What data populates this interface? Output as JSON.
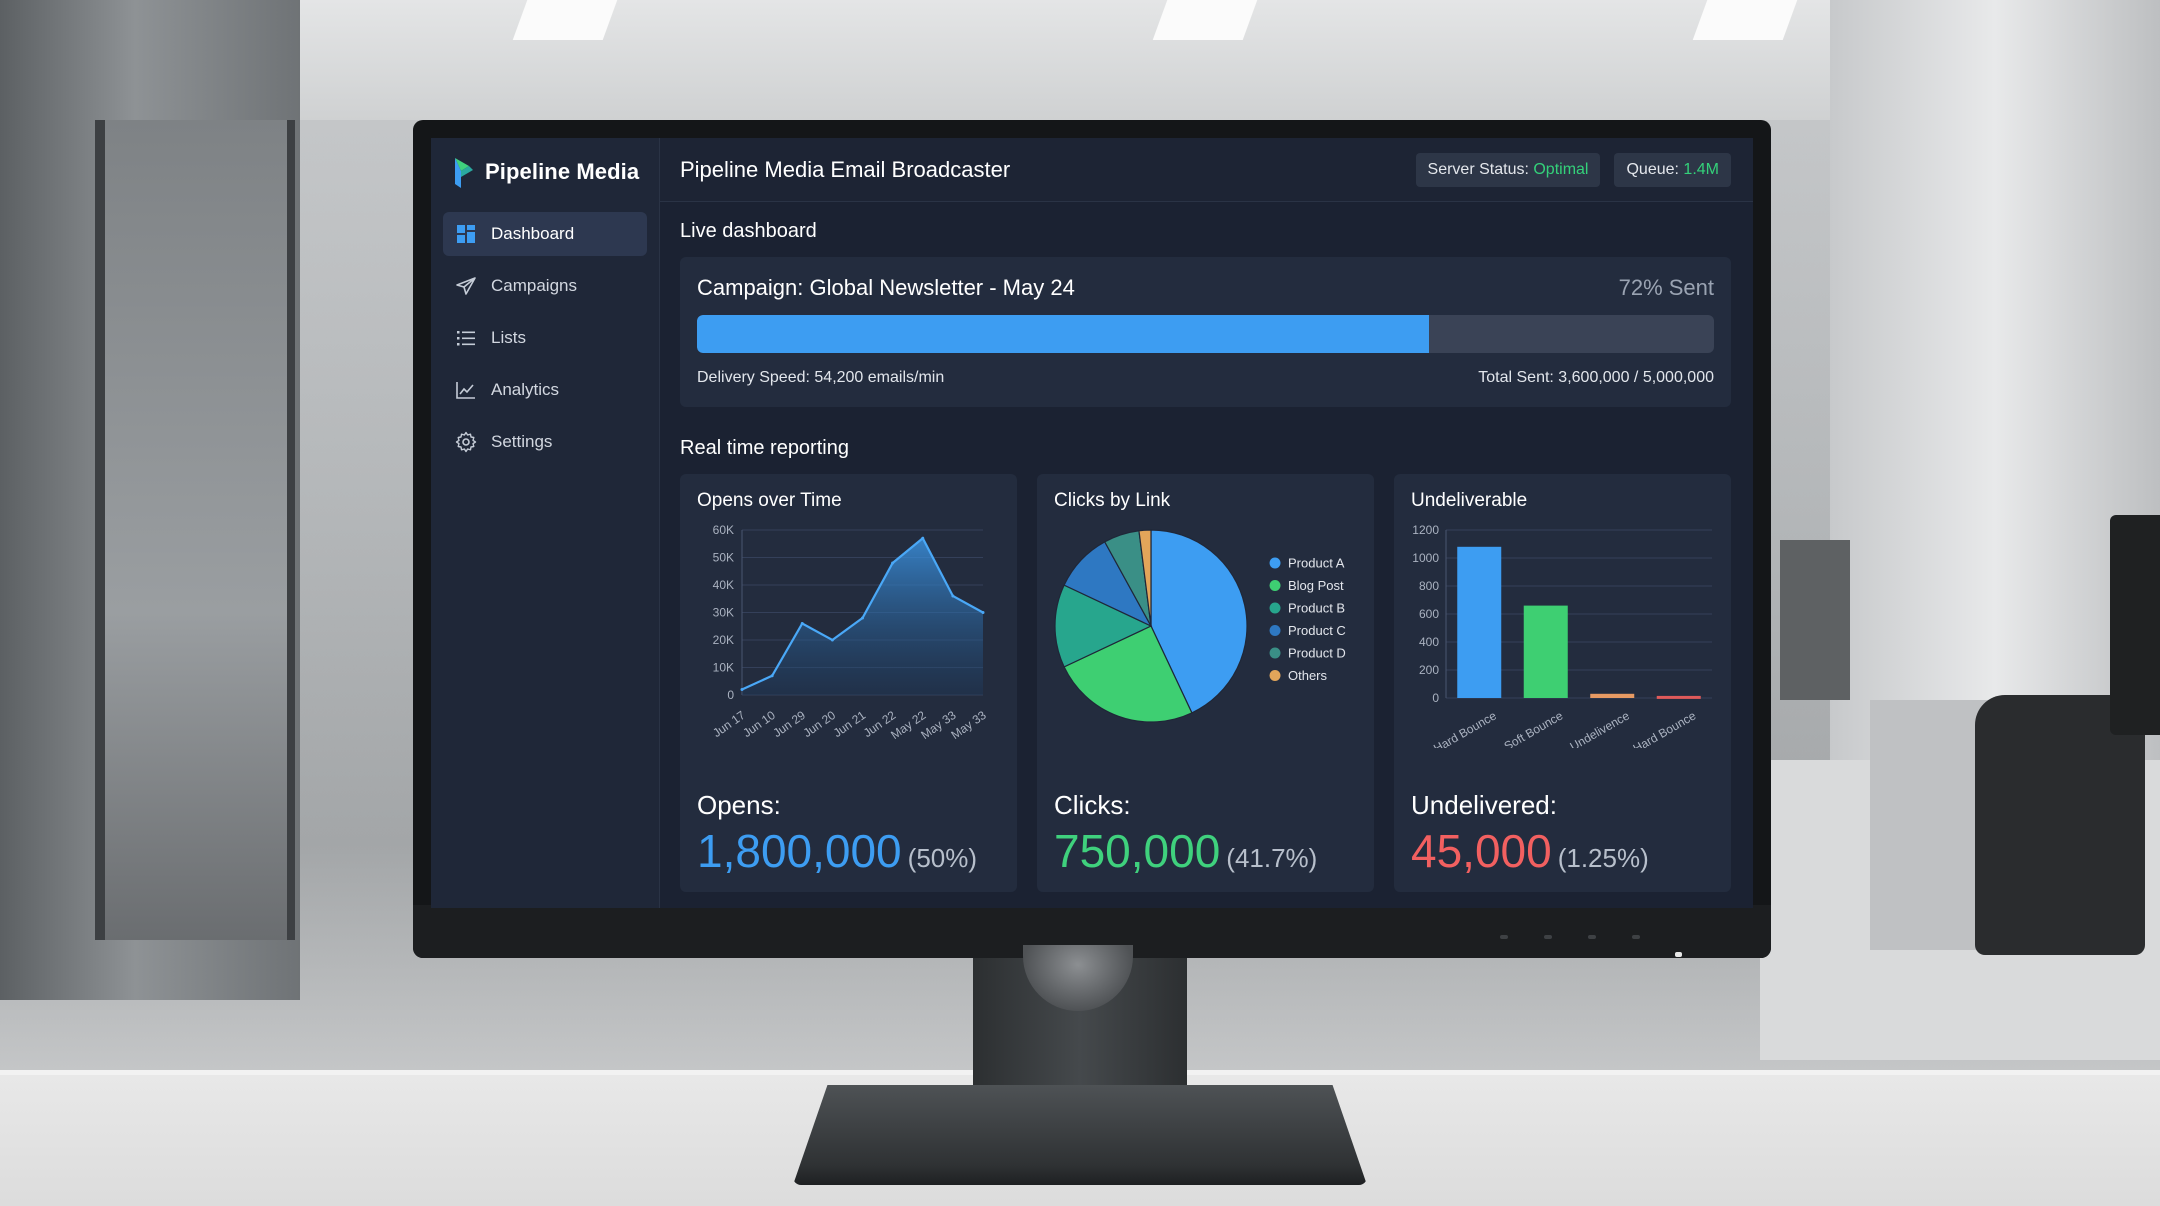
{
  "brand": {
    "name": "Pipeline Media"
  },
  "sidebar": {
    "items": [
      {
        "label": "Dashboard",
        "icon": "dashboard-icon",
        "active": true
      },
      {
        "label": "Campaigns",
        "icon": "paper-plane-icon",
        "active": false
      },
      {
        "label": "Lists",
        "icon": "list-icon",
        "active": false
      },
      {
        "label": "Analytics",
        "icon": "line-chart-icon",
        "active": false
      },
      {
        "label": "Settings",
        "icon": "gear-icon",
        "active": false
      }
    ]
  },
  "header": {
    "title": "Pipeline Media Email Broadcaster",
    "server_status_label": "Server Status:",
    "server_status_value": "Optimal",
    "queue_label": "Queue:",
    "queue_value": "1.4M"
  },
  "live": {
    "section_title": "Live dashboard",
    "campaign_title": "Campaign: Global Newsletter - May 24",
    "sent_pct_text": "72% Sent",
    "progress": 0.72,
    "delivery_speed": "Delivery Speed: 54,200 emails/min",
    "total_sent": "Total Sent: 3,600,000 / 5,000,000"
  },
  "reporting": {
    "section_title": "Real time reporting",
    "opens": {
      "title": "Opens over Time",
      "kpi_label": "Opens:",
      "kpi_value": "1,800,000",
      "kpi_pct": "(50%)"
    },
    "clicks": {
      "title": "Clicks by Link",
      "kpi_label": "Clicks:",
      "kpi_value": "750,000",
      "kpi_pct": "(41.7%)"
    },
    "undeliverable": {
      "title": "Undeliverable",
      "kpi_label": "Undelivered:",
      "kpi_value": "45,000",
      "kpi_pct": "(1.25%)"
    }
  },
  "colors": {
    "accent_blue": "#3d9df2",
    "success_green": "#34d17a",
    "clicks_green": "#3fd17d",
    "danger_red": "#f26060"
  },
  "chart_data": [
    {
      "type": "area",
      "categories": [
        "Jun 17",
        "Jun 10",
        "Jun 29",
        "Jun 20",
        "Jun 21",
        "Jun 22",
        "May 22",
        "May 33",
        "May 33"
      ],
      "x_ticks": [
        "Jun 17",
        "Jun 10",
        "Jun 29",
        "Jun 20",
        "Jun 21",
        "Jun 22",
        "May 22",
        "May 33",
        "May 33"
      ],
      "values": [
        2000,
        7000,
        26000,
        20000,
        28000,
        48000,
        57000,
        36000,
        30000
      ],
      "y_ticks": [
        "0",
        "10K",
        "20K",
        "30K",
        "40K",
        "50K",
        "60K"
      ],
      "ylim": [
        0,
        60000
      ],
      "grid": true
    },
    {
      "type": "pie",
      "labels": [
        "Product A",
        "Blog Post",
        "Product B",
        "Product C",
        "Product D",
        "Others"
      ],
      "values": [
        43,
        25,
        14,
        10,
        6,
        2
      ],
      "colors": [
        "#3d9df2",
        "#3ecf72",
        "#27a68d",
        "#2e78c2",
        "#3a8f86",
        "#e2a55a"
      ],
      "legend": "right"
    },
    {
      "type": "bar",
      "categories": [
        "Hard Bounce",
        "Soft Bounce",
        "Undelivence",
        "Hard Bounce"
      ],
      "values": [
        1080,
        660,
        30,
        15
      ],
      "colors": [
        "#3d9df2",
        "#3ecf72",
        "#e79a63",
        "#e05a5a"
      ],
      "y_ticks": [
        "0",
        "200",
        "400",
        "600",
        "800",
        "1000",
        "1200"
      ],
      "ylim": [
        0,
        1200
      ],
      "grid": true
    }
  ]
}
